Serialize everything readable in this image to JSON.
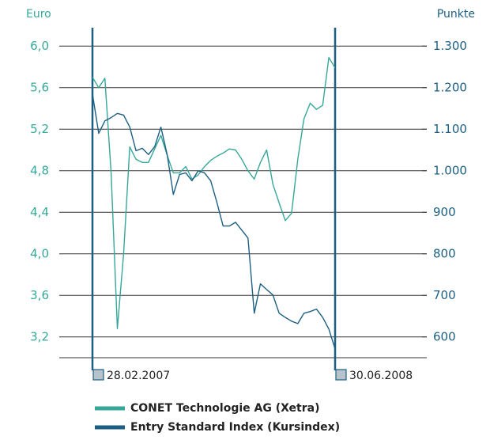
{
  "chart_data": {
    "type": "line",
    "y_label": "Euro",
    "y2_label": "Punkte",
    "categories": [
      "28.02.2007",
      null,
      null,
      null,
      null,
      null,
      null,
      null,
      null,
      null,
      null,
      null,
      null,
      null,
      null,
      null,
      null,
      null,
      null,
      null,
      null,
      null,
      null,
      null,
      null,
      null,
      null,
      null,
      null,
      null,
      null,
      null,
      null,
      null,
      null,
      null,
      null,
      null,
      null,
      "30.06.2008"
    ],
    "series": [
      {
        "name": "CONET Technologie AG (Xetra)",
        "color": "#35a89a",
        "axis": "y",
        "values": [
          5.7,
          5.6,
          5.69,
          4.78,
          3.28,
          4.0,
          5.03,
          4.91,
          4.88,
          4.88,
          5.01,
          5.14,
          4.95,
          4.78,
          4.78,
          4.84,
          4.72,
          4.76,
          4.84,
          4.9,
          4.94,
          4.97,
          5.01,
          5.0,
          4.91,
          4.8,
          4.72,
          4.88,
          5.0,
          4.67,
          4.49,
          4.32,
          4.39,
          4.91,
          5.3,
          5.45,
          5.39,
          5.43,
          5.89,
          5.79
        ]
      },
      {
        "name": "Entry Standard Index (Kursindex)",
        "color": "#1c5f82",
        "axis": "y2",
        "values": [
          1185,
          1090,
          1120,
          1128,
          1138,
          1134,
          1105,
          1048,
          1054,
          1039,
          1058,
          1105,
          1039,
          943,
          991,
          995,
          976,
          1000,
          995,
          976,
          924,
          867,
          867,
          876,
          857,
          838,
          657,
          728,
          714,
          701,
          657,
          647,
          638,
          632,
          657,
          661,
          667,
          647,
          619,
          571
        ]
      }
    ],
    "ylim": [
      3.0,
      6.2
    ],
    "yticks": [
      {
        "value": 3.2,
        "label": "3,2"
      },
      {
        "value": 3.6,
        "label": "3,6"
      },
      {
        "value": 4.0,
        "label": "4,0"
      },
      {
        "value": 4.4,
        "label": "4,4"
      },
      {
        "value": 4.8,
        "label": "4,8"
      },
      {
        "value": 5.2,
        "label": "5,2"
      },
      {
        "value": 5.6,
        "label": "5,6"
      },
      {
        "value": 6.0,
        "label": "6,0"
      }
    ],
    "y2lim": [
      550,
      1350
    ],
    "y2ticks": [
      600,
      700,
      800,
      900,
      {
        "value": 1000,
        "label": "1.000"
      },
      {
        "value": 1100,
        "label": "1.100"
      },
      {
        "value": 1200,
        "label": "1.200"
      },
      {
        "value": 1300,
        "label": "1.300"
      }
    ],
    "grid": true
  }
}
